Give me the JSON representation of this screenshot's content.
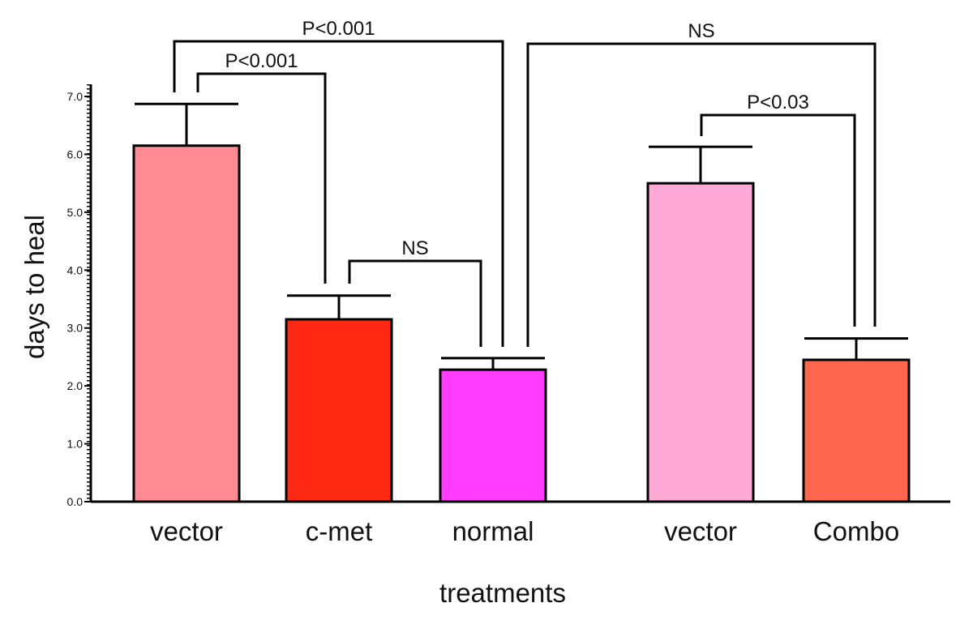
{
  "chart_data": {
    "type": "bar",
    "title": "",
    "xlabel": "treatments",
    "ylabel": "days to heal",
    "ylim": [
      0,
      7
    ],
    "yticks": [
      "0.0",
      "1.0",
      "2.0",
      "3.0",
      "4.0",
      "5.0",
      "6.0",
      "7.0"
    ],
    "grid": false,
    "categories": [
      "vector",
      "c-met",
      "normal",
      "vector",
      "Combo"
    ],
    "values": [
      6.15,
      3.15,
      2.28,
      5.5,
      2.45
    ],
    "errors": [
      0.72,
      0.41,
      0.2,
      0.63,
      0.37
    ],
    "colors": [
      "#FF8C94",
      "#FF2812",
      "#FF3CFF",
      "#FFAAD6",
      "#FF6650"
    ],
    "comparisons": [
      {
        "from": 0,
        "to": 2,
        "label": "P<0.001"
      },
      {
        "from": 0,
        "to": 1,
        "label": "P<0.001"
      },
      {
        "from": 1,
        "to": 2,
        "label": "NS"
      },
      {
        "from": 2,
        "to": 4,
        "label": "NS"
      },
      {
        "from": 3,
        "to": 4,
        "label": "P<0.03"
      }
    ]
  }
}
